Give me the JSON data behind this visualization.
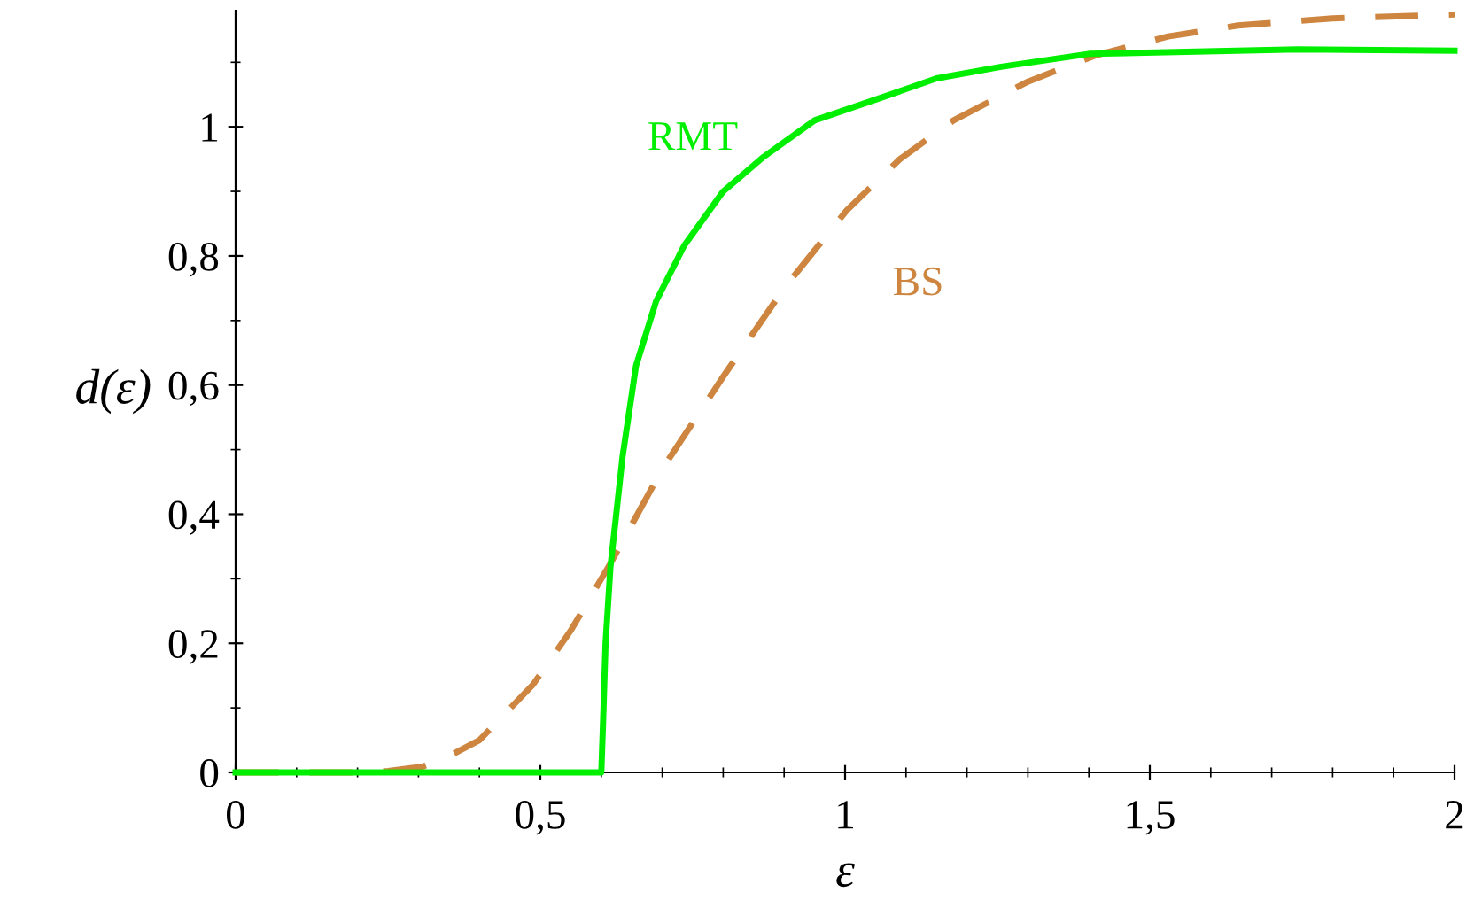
{
  "chart_data": {
    "type": "line",
    "xlabel": "ε",
    "ylabel": "d(ε)",
    "xlim": [
      0,
      2
    ],
    "ylim": [
      0,
      1.18
    ],
    "xticks": [
      0,
      {
        "value": 0.5,
        "label": "0,5"
      },
      1,
      {
        "value": 1.5,
        "label": "1,5"
      },
      2
    ],
    "yticks": [
      0,
      {
        "value": 0.2,
        "label": "0,2"
      },
      {
        "value": 0.4,
        "label": "0,4"
      },
      {
        "value": 0.6,
        "label": "0,6"
      },
      {
        "value": 0.8,
        "label": "0,8"
      },
      1
    ],
    "grid": false,
    "legend": false,
    "marker": "none",
    "series": [
      {
        "name": "RMT",
        "color": "#00ee00",
        "line_style": "solid",
        "x": [
          0,
          0.6,
          0.603,
          0.607,
          0.615,
          0.635,
          0.657,
          0.69,
          0.736,
          0.8,
          0.867,
          0.95,
          1.062,
          1.15,
          1.256,
          1.4,
          1.742,
          2
        ],
        "values": [
          0,
          0,
          0.08,
          0.2,
          0.318,
          0.49,
          0.63,
          0.73,
          0.816,
          0.9,
          0.954,
          1.01,
          1.046,
          1.075,
          1.093,
          1.113,
          1.12,
          1.118
        ]
      },
      {
        "name": "BS",
        "color": "#cd853f",
        "line_style": "dashed",
        "x": [
          0,
          0.19,
          0.25,
          0.307,
          0.35,
          0.4,
          0.488,
          0.55,
          0.617,
          0.7,
          0.8,
          0.9,
          1.003,
          1.09,
          1.178,
          1.3,
          1.412,
          1.53,
          1.645,
          1.8,
          2
        ],
        "values": [
          0,
          0,
          0.002,
          0.009,
          0.025,
          0.05,
          0.136,
          0.22,
          0.327,
          0.47,
          0.613,
          0.75,
          0.871,
          0.95,
          1.01,
          1.07,
          1.111,
          1.14,
          1.157,
          1.168,
          1.174
        ]
      }
    ]
  }
}
